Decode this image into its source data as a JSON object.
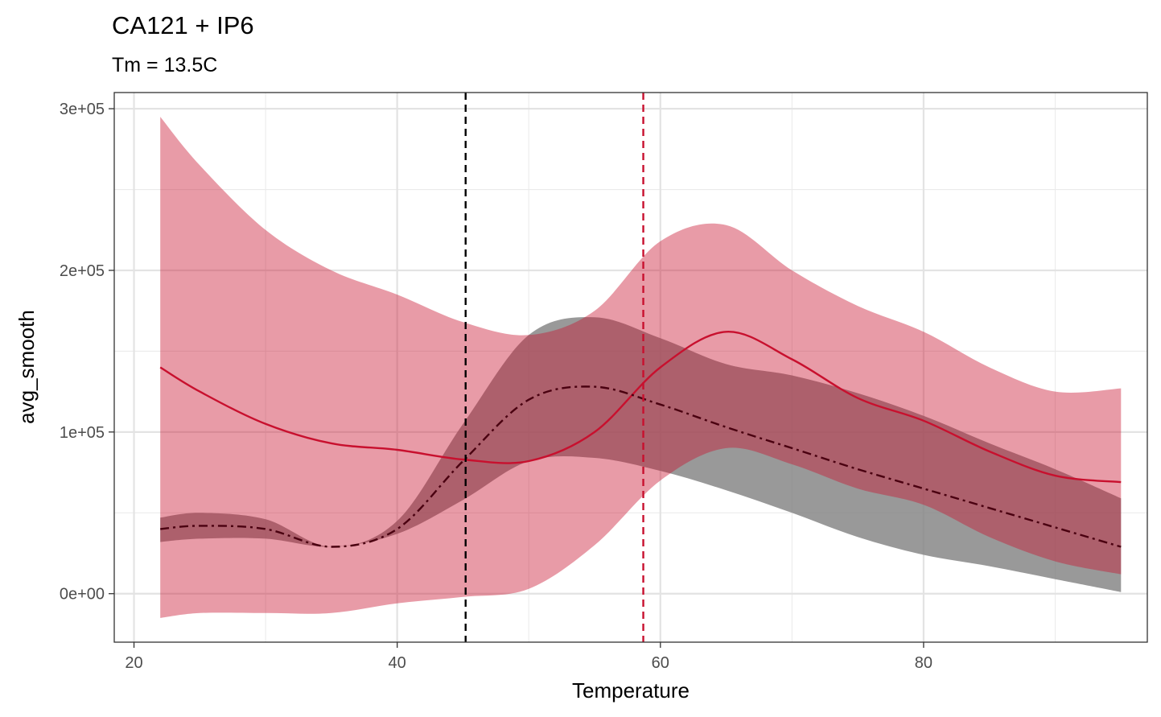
{
  "chart_data": {
    "type": "line",
    "title": "CA121 + IP6",
    "subtitle": "Tm = 13.5C",
    "xlabel": "Temperature",
    "ylabel": "avg_smooth",
    "xlim": [
      18.5,
      97
    ],
    "ylim": [
      -30000,
      310000
    ],
    "x_ticks": [
      20,
      40,
      60,
      80
    ],
    "y_ticks": [
      0,
      100000,
      200000,
      300000
    ],
    "x_tick_labels": [
      "20",
      "40",
      "60",
      "80"
    ],
    "y_tick_labels": [
      "0e+00",
      "1e+05",
      "2e+05",
      "3e+05"
    ],
    "grid": true,
    "legend": "none",
    "x": [
      22,
      25,
      30,
      35,
      40,
      45,
      50,
      55,
      60,
      65,
      70,
      75,
      80,
      85,
      90,
      95
    ],
    "series": [
      {
        "color": "#C8102E",
        "line_style": "solid",
        "ribbon_alpha": 0.42,
        "values": [
          140000,
          125000,
          105000,
          93000,
          89000,
          83000,
          82000,
          100000,
          140000,
          162000,
          145000,
          121000,
          107000,
          88000,
          73000,
          69000
        ],
        "lower": [
          -15000,
          -12000,
          -12000,
          -12000,
          -6000,
          -2000,
          3000,
          30000,
          70000,
          90000,
          80000,
          65000,
          55000,
          35000,
          20000,
          12000
        ],
        "upper": [
          295000,
          265000,
          225000,
          200000,
          185000,
          168000,
          160000,
          175000,
          218000,
          228000,
          200000,
          178000,
          162000,
          140000,
          125000,
          127000
        ]
      },
      {
        "color": "#4A0010",
        "line_style": "dashdot",
        "ribbon_color": "#808080",
        "ribbon_alpha": 0.8,
        "values": [
          40000,
          42000,
          40000,
          29000,
          40000,
          82000,
          120000,
          128000,
          117000,
          103000,
          90000,
          77000,
          65000,
          53000,
          41000,
          29000
        ],
        "lower": [
          32000,
          34000,
          34000,
          29000,
          37000,
          58000,
          82000,
          84000,
          76000,
          64000,
          50000,
          35000,
          24000,
          17000,
          9000,
          1000
        ],
        "upper": [
          47000,
          50000,
          46000,
          29000,
          45000,
          105000,
          160000,
          171000,
          158000,
          142000,
          135000,
          124000,
          110000,
          93000,
          77000,
          59000
        ]
      }
    ],
    "vlines": [
      {
        "x": 45.2,
        "color": "#000000",
        "line_style": "dashed"
      },
      {
        "x": 58.7,
        "color": "#C8102E",
        "line_style": "dashed"
      }
    ]
  }
}
